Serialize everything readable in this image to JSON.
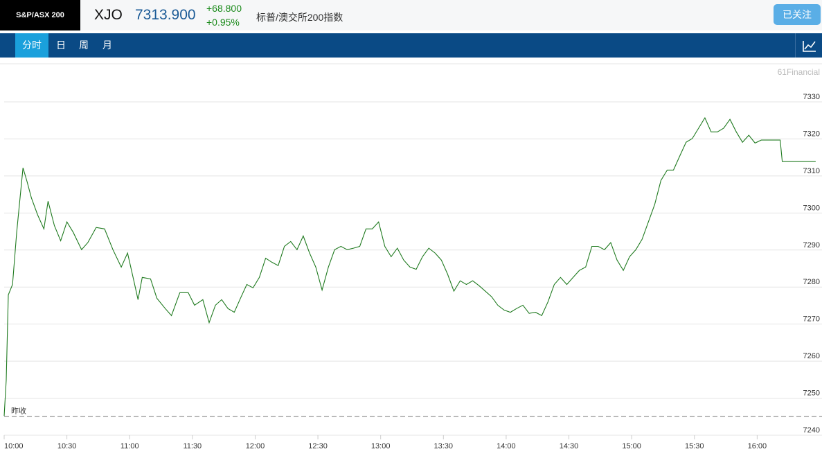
{
  "header": {
    "logo": "S&P/ASX 200",
    "symbol": "XJO",
    "price": "7313.900",
    "change": "+68.800",
    "change_pct": "+0.95%",
    "name": "标普/澳交所200指数",
    "follow_button": "已关注"
  },
  "nav": {
    "tabs": [
      "分时",
      "日",
      "周",
      "月"
    ]
  },
  "chart_data": {
    "type": "line",
    "watermark": "61Financial",
    "prev_close_label": "昨收",
    "prev_close": 7245.1,
    "ylim": [
      7240,
      7340.3
    ],
    "yticks": [
      7240,
      7250,
      7260,
      7270,
      7280,
      7290,
      7300,
      7310,
      7320,
      7330
    ],
    "xlim": [
      "10:00",
      "16:31"
    ],
    "xticks": [
      "10:00",
      "10:30",
      "11:00",
      "11:30",
      "12:00",
      "12:30",
      "13:00",
      "13:30",
      "14:00",
      "14:30",
      "15:00",
      "15:30",
      "16:00"
    ],
    "grid": true,
    "x": [
      "10:00",
      "10:01",
      "10:02",
      "10:04",
      "10:06",
      "10:09",
      "10:11",
      "10:13",
      "10:16",
      "10:19",
      "10:21",
      "10:24",
      "10:27",
      "10:30",
      "10:33",
      "10:37",
      "10:40",
      "10:44",
      "10:48",
      "10:52",
      "10:56",
      "10:59",
      "11:02",
      "11:04",
      "11:06",
      "11:10",
      "11:13",
      "11:17",
      "11:20",
      "11:24",
      "11:28",
      "11:31",
      "11:35",
      "11:38",
      "11:41",
      "11:44",
      "11:47",
      "11:50",
      "11:53",
      "11:56",
      "11:59",
      "12:02",
      "12:05",
      "12:08",
      "12:11",
      "12:14",
      "12:17",
      "12:20",
      "12:23",
      "12:26",
      "12:29",
      "12:32",
      "12:35",
      "12:38",
      "12:41",
      "12:44",
      "12:47",
      "12:50",
      "12:53",
      "12:56",
      "12:59",
      "13:02",
      "13:05",
      "13:08",
      "13:11",
      "13:14",
      "13:17",
      "13:20",
      "13:23",
      "13:26",
      "13:29",
      "13:32",
      "13:35",
      "13:38",
      "13:41",
      "13:44",
      "13:47",
      "13:50",
      "13:53",
      "13:56",
      "13:59",
      "14:02",
      "14:05",
      "14:08",
      "14:11",
      "14:14",
      "14:17",
      "14:20",
      "14:23",
      "14:26",
      "14:29",
      "14:32",
      "14:35",
      "14:38",
      "14:41",
      "14:44",
      "14:47",
      "14:50",
      "14:53",
      "14:56",
      "14:59",
      "15:02",
      "15:05",
      "15:08",
      "15:11",
      "15:14",
      "15:17",
      "15:20",
      "15:23",
      "15:26",
      "15:29",
      "15:32",
      "15:35",
      "15:38",
      "15:41",
      "15:44",
      "15:47",
      "15:50",
      "15:53",
      "15:56",
      "15:59",
      "16:02",
      "16:05",
      "16:08",
      "16:11",
      "16:12",
      "16:28"
    ],
    "series": [
      {
        "name": "XJO",
        "color": "#1f7a1f",
        "values": [
          7245.2,
          7254.9,
          7277.9,
          7280.7,
          7294.8,
          7312.2,
          7308.4,
          7304.1,
          7299.5,
          7295.7,
          7303.2,
          7296.6,
          7292.5,
          7297.6,
          7294.8,
          7290.1,
          7292.0,
          7296.1,
          7295.7,
          7290.1,
          7285.4,
          7289.2,
          7281.7,
          7276.6,
          7282.6,
          7282.2,
          7277.0,
          7274.2,
          7272.3,
          7278.5,
          7278.5,
          7275.1,
          7276.6,
          7270.4,
          7275.1,
          7276.6,
          7274.2,
          7273.2,
          7277.0,
          7280.7,
          7279.8,
          7282.6,
          7287.8,
          7286.7,
          7285.8,
          7291.0,
          7292.3,
          7290.1,
          7293.8,
          7289.2,
          7285.4,
          7279.2,
          7285.4,
          7290.1,
          7291.0,
          7290.1,
          7290.5,
          7291.0,
          7295.7,
          7295.7,
          7297.6,
          7291.0,
          7288.2,
          7290.5,
          7287.3,
          7285.4,
          7284.8,
          7288.2,
          7290.5,
          7289.2,
          7287.3,
          7283.5,
          7278.9,
          7281.7,
          7280.7,
          7281.7,
          7280.4,
          7278.9,
          7277.4,
          7275.1,
          7273.8,
          7273.2,
          7274.2,
          7275.1,
          7272.9,
          7273.2,
          7272.3,
          7276.0,
          7280.7,
          7282.6,
          7280.7,
          7282.6,
          7284.5,
          7285.4,
          7291.0,
          7291.0,
          7290.1,
          7292.0,
          7287.3,
          7284.5,
          7288.2,
          7290.1,
          7292.9,
          7297.6,
          7302.3,
          7308.8,
          7311.6,
          7311.6,
          7315.4,
          7319.1,
          7320.1,
          7322.9,
          7325.7,
          7321.9,
          7321.9,
          7322.9,
          7325.3,
          7321.9,
          7319.1,
          7321.0,
          7318.9,
          7319.7,
          7319.7,
          7319.7,
          7319.7,
          7313.9,
          7313.9
        ]
      }
    ]
  }
}
